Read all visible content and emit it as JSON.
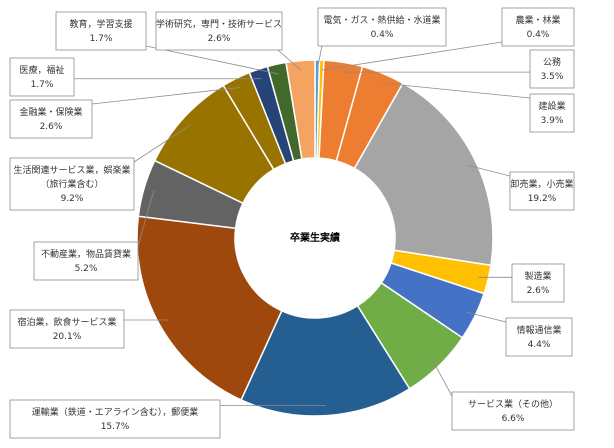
{
  "chart_data": {
    "type": "pie",
    "title": "卒業生実績",
    "categories": [
      "電気・ガス・熱供給・水道業",
      "農業・林業",
      "公務",
      "建設業",
      "卸売業，小売業",
      "製造業",
      "情報通信業",
      "サービス業（その他）",
      "運輸業（鉄道・エアライン含む），郵便業",
      "宿泊業，飲食サービス業",
      "不動産業，物品賃貸業",
      "生活関連サービス業，娯楽業（旅行業含む）",
      "金融業・保険業",
      "医療，福祉",
      "教育，学習支援",
      "学術研究，専門・技術サービス"
    ],
    "values": [
      0.4,
      0.4,
      3.5,
      3.9,
      19.2,
      2.6,
      4.4,
      6.6,
      15.7,
      20.1,
      5.2,
      9.2,
      2.6,
      1.7,
      1.7,
      2.6
    ],
    "value_labels": [
      "0.4%",
      "0.4%",
      "3.5%",
      "3.9%",
      "19.2%",
      "2.6%",
      "4.4%",
      "6.6%",
      "15.7%",
      "20.1%",
      "5.2%",
      "9.2%",
      "2.6%",
      "1.7%",
      "1.7%",
      "2.6%"
    ],
    "label_lines": [
      [
        "電気・ガス・熱供給・水道業"
      ],
      [
        "農業・林業"
      ],
      [
        "公務"
      ],
      [
        "建設業"
      ],
      [
        "卸売業，小売業"
      ],
      [
        "製造業"
      ],
      [
        "情報通信業"
      ],
      [
        "サービス業（その他）"
      ],
      [
        "運輸業（鉄道・エアライン含む），郵便業"
      ],
      [
        "宿泊業，飲食サービス業"
      ],
      [
        "不動産業，物品賃貸業"
      ],
      [
        "生活関連サービス業，娯楽業",
        "（旅行業含む）"
      ],
      [
        "金融業・保険業"
      ],
      [
        "医療，福祉"
      ],
      [
        "教育，学習支援"
      ],
      [
        "学術研究，専門・技術サービス"
      ]
    ],
    "colors": [
      "#5b9bd5",
      "#ffc000",
      "#ed7d31",
      "#ed7d31",
      "#a5a5a5",
      "#ffc000",
      "#4472c4",
      "#70ad47",
      "#255e91",
      "#9e480e",
      "#636363",
      "#997300",
      "#997300",
      "#264478",
      "#43682b",
      "#f4a460"
    ],
    "legend": "none",
    "start_angle_deg": 0,
    "direction": "clockwise"
  }
}
